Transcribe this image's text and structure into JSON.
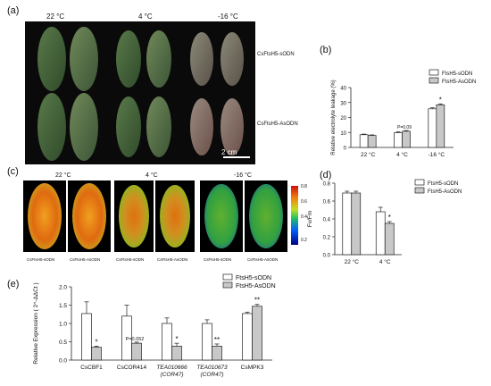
{
  "panels": {
    "a": "(a)",
    "b": "(b)",
    "c": "(c)",
    "d": "(d)",
    "e": "(e)"
  },
  "photo_panel": {
    "temperatures": [
      "22 °C",
      "4 °C",
      "-16 °C"
    ],
    "rows": [
      "CsFtsH5-sODN",
      "CsFtsH5-AsODN"
    ],
    "scale_bar": "2 cm"
  },
  "fluorescence_panel": {
    "temperatures": [
      "22 °C",
      "4 °C",
      "-16 °C"
    ],
    "leaf_labels": [
      "CsFtsH5-sODN",
      "CsFtsH5-AsODN",
      "CsFtsH5-sODN",
      "CsFtsH5-AsODN",
      "CsFtsH5-sODN",
      "CsFtsH5-AsODN"
    ],
    "colorbar_ticks": [
      "0.8",
      "0.6",
      "0.4",
      "0.2"
    ]
  },
  "colors": {
    "sODN": "#ffffff",
    "AsODN": "#c8c8c8",
    "stroke": "#222222"
  },
  "chart_data": [
    {
      "id": "b",
      "type": "bar",
      "categories": [
        "22 °C",
        "4 °C",
        "-16 °C"
      ],
      "series": [
        {
          "name": "FtsH5-sODN",
          "values": [
            8.5,
            9.8,
            25.8
          ],
          "errors": [
            0.4,
            0.6,
            0.7
          ]
        },
        {
          "name": "FtsH5-AsODN",
          "values": [
            8.0,
            10.8,
            28.5
          ],
          "errors": [
            0.4,
            0.5,
            0.6
          ]
        }
      ],
      "ylabel": "Relative electrolyte leakage (%)",
      "ylim": [
        0,
        40
      ],
      "yticks": [
        0,
        10,
        20,
        30,
        40
      ],
      "annotations": [
        {
          "category": 1,
          "text": "P=0.09"
        },
        {
          "category": 2,
          "text": "*"
        }
      ],
      "legend": "top-right"
    },
    {
      "id": "d",
      "type": "bar",
      "categories": [
        "22 °C",
        "4 °C"
      ],
      "series": [
        {
          "name": "FtsH5-sODN",
          "values": [
            0.69,
            0.48
          ],
          "errors": [
            0.02,
            0.05
          ]
        },
        {
          "name": "FtsH5-AsODN",
          "values": [
            0.69,
            0.35
          ],
          "errors": [
            0.02,
            0.02
          ]
        }
      ],
      "ylabel": "Fv/Fm",
      "ylim": [
        0,
        0.8
      ],
      "yticks": [
        0.0,
        0.2,
        0.4,
        0.6,
        0.8
      ],
      "annotations": [
        {
          "category": 1,
          "text": "*"
        }
      ],
      "legend": "top-right"
    },
    {
      "id": "e",
      "type": "bar",
      "categories": [
        "CsCBF1",
        "CsCOR414",
        "TEA010666 (COR47)",
        "TEA010673 (COR47)",
        "CsMPK3"
      ],
      "series": [
        {
          "name": "FtsH5-sODN",
          "values": [
            1.27,
            1.2,
            1.0,
            1.0,
            1.27
          ],
          "errors": [
            0.32,
            0.3,
            0.15,
            0.1,
            0.04
          ]
        },
        {
          "name": "FtsH5-AsODN",
          "values": [
            0.35,
            0.46,
            0.38,
            0.38,
            1.47
          ],
          "errors": [
            0.03,
            0.03,
            0.08,
            0.06,
            0.05
          ]
        }
      ],
      "ylabel": "Relative Expression ( 2^-ΔΔCt )",
      "ylim": [
        0,
        2.0
      ],
      "yticks": [
        0.0,
        0.5,
        1.0,
        1.5,
        2.0
      ],
      "annotations": [
        {
          "category": 0,
          "text": "*"
        },
        {
          "category": 1,
          "text": "P=0.052"
        },
        {
          "category": 2,
          "text": "*"
        },
        {
          "category": 3,
          "text": "**"
        },
        {
          "category": 4,
          "text": "**"
        }
      ],
      "legend": "top-right"
    }
  ]
}
